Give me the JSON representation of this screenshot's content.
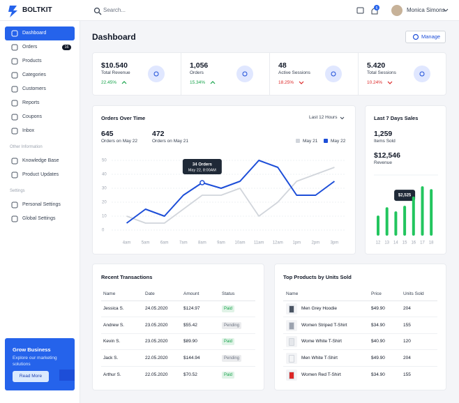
{
  "topbar": {
    "brand": "BOLTKIT",
    "search": "Search...",
    "notifications": "6",
    "user": "Monica Simons"
  },
  "nav": [
    {
      "items": [
        {
          "label": "Dashboard",
          "active": true
        },
        {
          "label": "Orders",
          "badge": "16"
        },
        {
          "label": "Products"
        },
        {
          "label": "Categories"
        },
        {
          "label": "Customers"
        },
        {
          "label": "Reports"
        },
        {
          "label": "Coupons"
        },
        {
          "label": "Inbox"
        }
      ]
    },
    {
      "title": "Other Information",
      "items": [
        {
          "label": "Knowledge Base"
        },
        {
          "label": "Product Updates"
        }
      ]
    },
    {
      "title": "Settings",
      "items": [
        {
          "label": "Personal Settings"
        },
        {
          "label": "Global Settings"
        }
      ]
    }
  ],
  "promo": {
    "title": "Grow Business",
    "text": "Explore our marketing solutions",
    "button": "Read More"
  },
  "header": {
    "title": "Dashboard",
    "button": "Manage"
  },
  "kpis": [
    {
      "value": "$10.540",
      "label": "Total Revenue",
      "change": "22.45%",
      "color": "#16a34a",
      "up": true
    },
    {
      "value": "1,056",
      "label": "Orders",
      "change": "15.34%",
      "color": "#16a34a",
      "up": true
    },
    {
      "value": "48",
      "label": "Active Sessions",
      "change": "18.25%",
      "color": "#dc2626",
      "up": false
    },
    {
      "value": "5.420",
      "label": "Total Sessions",
      "change": "10.24%",
      "color": "#dc2626",
      "up": false
    }
  ],
  "chart_data": [
    {
      "type": "line",
      "title": "Orders Over Time",
      "range": "Last 12 Hours",
      "stats": [
        {
          "value": "645",
          "label": "Orders on May 22"
        },
        {
          "value": "472",
          "label": "Orders on May 21"
        }
      ],
      "categories": [
        "4am",
        "5am",
        "6am",
        "7am",
        "8am",
        "9am",
        "10am",
        "11am",
        "12am",
        "1pm",
        "2pm",
        "3pm"
      ],
      "series": [
        {
          "name": "May 21",
          "color": "#d1d5db",
          "values": [
            10,
            5,
            5,
            15,
            25,
            25,
            30,
            10,
            20,
            35,
            40,
            45
          ]
        },
        {
          "name": "May 22",
          "color": "#1d4ed8",
          "values": [
            5,
            15,
            10,
            25,
            34,
            30,
            35,
            50,
            45,
            25,
            25,
            35
          ]
        }
      ],
      "ylim": [
        0,
        50
      ],
      "yticks": [
        0,
        10,
        20,
        30,
        40,
        50
      ],
      "grid": true,
      "annotation": {
        "title": "34 Orders",
        "text": "May 22, 8:00AM"
      }
    },
    {
      "type": "bar",
      "title": "Last 7 Days Sales",
      "stats": [
        {
          "value": "1,259",
          "label": "Items Sold"
        },
        {
          "value": "$12,546",
          "label": "Revenue"
        }
      ],
      "categories": [
        "12",
        "13",
        "14",
        "15",
        "16",
        "17",
        "18"
      ],
      "values": [
        1700,
        2400,
        2050,
        2525,
        3300,
        4170,
        3930
      ],
      "value_labels": [
        null,
        null,
        null,
        "$2,525",
        null,
        null,
        null
      ],
      "color": "#22c55e",
      "ylim": [
        0,
        5000
      ]
    }
  ],
  "transactions": {
    "title": "Recent Transactions",
    "columns": [
      "Name",
      "Date",
      "Amount",
      "Status"
    ],
    "rows": [
      {
        "cells": [
          "Jessica S.",
          "24.05.2020",
          "$124.97",
          "Paid"
        ],
        "status_color": "#16a34a"
      },
      {
        "cells": [
          "Andrew S.",
          "23.05.2020",
          "$55.42",
          "Pending"
        ],
        "status_color": "#6b7280"
      },
      {
        "cells": [
          "Kevin S.",
          "23.05.2020",
          "$89.90",
          "Paid"
        ],
        "status_color": "#16a34a"
      },
      {
        "cells": [
          "Jack S.",
          "22.05.2020",
          "$144.94",
          "Pending"
        ],
        "status_color": "#6b7280"
      },
      {
        "cells": [
          "Arthur S.",
          "22.05.2020",
          "$70.52",
          "Paid"
        ],
        "status_color": "#16a34a"
      }
    ]
  },
  "products": {
    "title": "Top Products by Units Sold",
    "columns": [
      "Name",
      "Price",
      "Units Sold"
    ],
    "rows": [
      {
        "cells": [
          "Men Grey Hoodie",
          "$49.90",
          "204"
        ],
        "color": "#4b5563"
      },
      {
        "cells": [
          "Women Striped T-Shirt",
          "$34.90",
          "155"
        ],
        "color": "#9ca3af"
      },
      {
        "cells": [
          "Wome White T-Shirt",
          "$40.90",
          "120"
        ],
        "color": "#e5e7eb"
      },
      {
        "cells": [
          "Men White T-Shirt",
          "$49.90",
          "204"
        ],
        "color": "#f3f4f6"
      },
      {
        "cells": [
          "Women Red T-Shirt",
          "$34.90",
          "155"
        ],
        "color": "#dc2626"
      }
    ]
  }
}
